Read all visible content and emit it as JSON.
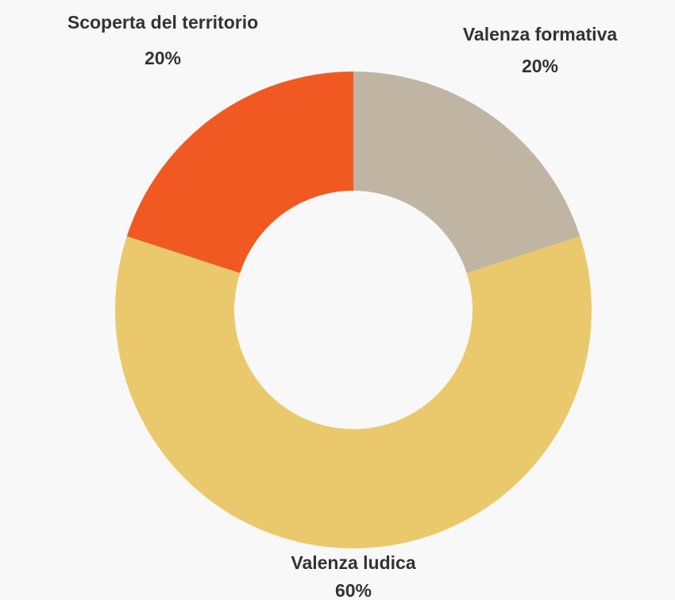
{
  "chart_data": {
    "type": "donut",
    "categories": [
      "Valenza formativa",
      "Valenza ludica",
      "Scoperta del territorio"
    ],
    "values": [
      20,
      60,
      20
    ],
    "value_labels": [
      "20%",
      "60%",
      "20%"
    ],
    "colors": [
      "#bfb5a2",
      "#e9c96b",
      "#f05a22"
    ]
  }
}
